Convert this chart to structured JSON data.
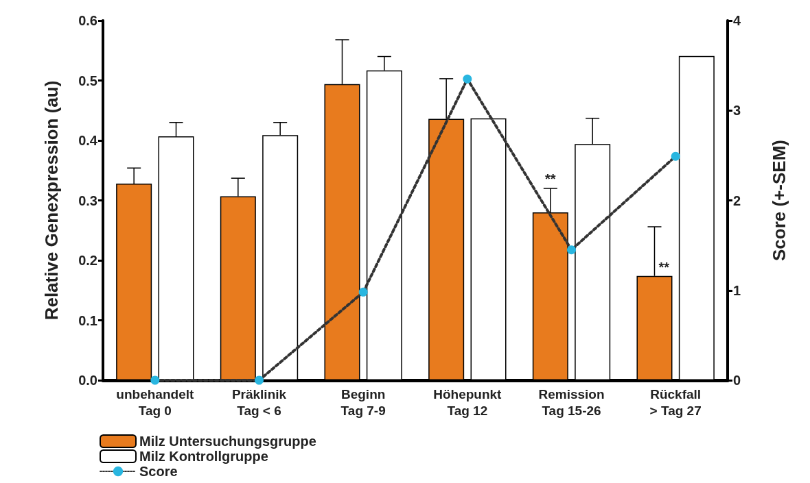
{
  "chart_data": {
    "type": "bar",
    "ylabel": "Relative Genexpression (au)",
    "y2label": "Score (+-SEM)",
    "categories": [
      "unbehandelt\nTag 0",
      "Präklinik\nTag < 6",
      "Beginn\nTag 7-9",
      "Höhepunkt\nTag 12",
      "Remission\nTag 15-26",
      "Rückfall\n> Tag 27"
    ],
    "series": [
      {
        "name": "Milz Untersuchungsgruppe",
        "color": "#e87b1e",
        "value_labels": [
          null,
          null,
          null,
          null,
          "**",
          "**"
        ],
        "values": [
          0.328,
          0.307,
          0.494,
          0.436,
          0.28,
          0.174
        ],
        "errors": [
          [
            0.328,
            0.354
          ],
          [
            0.307,
            0.337
          ],
          [
            0.494,
            0.568
          ],
          [
            0.436,
            0.503
          ],
          [
            0.28,
            0.32
          ],
          [
            0.174,
            0.256
          ]
        ]
      },
      {
        "name": "Milz Kontrollgruppe",
        "color": "#ffffff",
        "values": [
          0.407,
          0.409,
          0.517,
          0.437,
          0.394,
          0.541
        ],
        "errors": [
          [
            0.407,
            0.43
          ],
          [
            0.409,
            0.43
          ],
          [
            0.517,
            0.54
          ],
          null,
          [
            0.394,
            0.437
          ],
          null
        ]
      },
      {
        "name": "Score",
        "type": "line",
        "axis": "y2",
        "color": "#29b6e0",
        "values": [
          0,
          0,
          0.98,
          3.35,
          1.45,
          2.49
        ],
        "marker": "circle",
        "line_style": "dotted"
      }
    ],
    "ylim": [
      0,
      0.6
    ],
    "yticks": [
      {
        "value": 0,
        "label": "0.0"
      },
      0.1,
      0.2,
      0.3,
      0.4,
      0.5,
      0.6
    ],
    "y2lim": [
      0,
      4
    ],
    "y2ticks": [
      0,
      1,
      2,
      3,
      4
    ],
    "grid": false,
    "legend": "bottom left"
  }
}
